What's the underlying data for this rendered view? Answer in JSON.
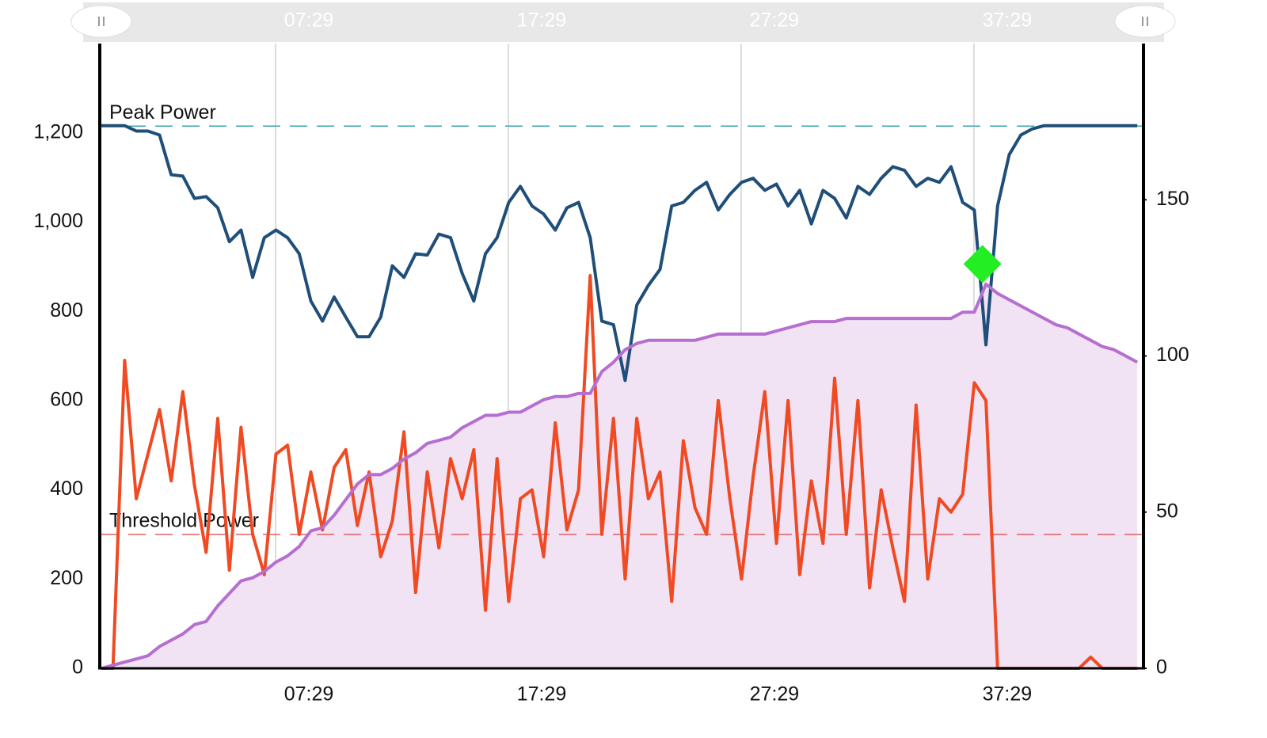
{
  "chart_data": {
    "type": "line",
    "x": [
      0,
      30,
      60,
      90,
      120,
      150,
      180,
      210,
      240,
      270,
      300,
      330,
      360,
      390,
      420,
      450,
      480,
      510,
      540,
      570,
      600,
      630,
      660,
      690,
      720,
      750,
      780,
      810,
      840,
      870,
      900,
      930,
      960,
      990,
      1020,
      1050,
      1080,
      1110,
      1140,
      1170,
      1200,
      1230,
      1260,
      1290,
      1320,
      1350,
      1380,
      1410,
      1440,
      1470,
      1500,
      1530,
      1560,
      1590,
      1620,
      1650,
      1680,
      1710,
      1740,
      1770,
      1800,
      1830,
      1860,
      1890,
      1920,
      1950,
      1980,
      2010,
      2040,
      2070,
      2100,
      2130,
      2160,
      2190,
      2220,
      2250,
      2280,
      2310,
      2340,
      2370,
      2400,
      2430,
      2460,
      2490,
      2520,
      2550,
      2580,
      2610,
      2640,
      2670
    ],
    "series": [
      {
        "color": "#f04a23",
        "axis": "y",
        "values": [
          0,
          0,
          690,
          380,
          480,
          580,
          420,
          620,
          410,
          260,
          560,
          220,
          540,
          300,
          210,
          480,
          500,
          300,
          440,
          310,
          450,
          490,
          320,
          440,
          250,
          330,
          530,
          170,
          440,
          270,
          470,
          380,
          490,
          130,
          470,
          150,
          380,
          400,
          250,
          550,
          310,
          400,
          880,
          300,
          560,
          200,
          560,
          380,
          440,
          150,
          510,
          360,
          300,
          600,
          380,
          200,
          430,
          620,
          280,
          600,
          210,
          420,
          280,
          650,
          300,
          600,
          180,
          400,
          270,
          150,
          590,
          200,
          380,
          350,
          390,
          640,
          600,
          0,
          0,
          0,
          0,
          0,
          0,
          0,
          0,
          25,
          0,
          0,
          0,
          0
        ]
      },
      {
        "color": "#1f4e79",
        "axis": "y",
        "values": [
          1216,
          1216,
          1216,
          1204,
          1204,
          1195,
          1106,
          1103,
          1053,
          1057,
          1032,
          956,
          982,
          876,
          965,
          982,
          965,
          929,
          823,
          778,
          832,
          787,
          743,
          743,
          787,
          902,
          876,
          929,
          926,
          973,
          965,
          885,
          823,
          929,
          965,
          1044,
          1080,
          1036,
          1018,
          982,
          1032,
          1044,
          965,
          778,
          770,
          645,
          814,
          858,
          894,
          1036,
          1044,
          1071,
          1089,
          1027,
          1062,
          1089,
          1098,
          1071,
          1085,
          1036,
          1071,
          996,
          1071,
          1053,
          1009,
          1080,
          1062,
          1098,
          1124,
          1116,
          1080,
          1098,
          1089,
          1124,
          1044,
          1027,
          725,
          1036,
          1151,
          1195,
          1209,
          1216,
          1216,
          1216,
          1216,
          1216,
          1216,
          1216,
          1216,
          1216
        ]
      },
      {
        "color": "#b56fd0",
        "fill": "#f1e2f4",
        "axis": "y2",
        "values": [
          0,
          1,
          2,
          3,
          4,
          7,
          9,
          11,
          14,
          15,
          20,
          24,
          28,
          29,
          31,
          34,
          36,
          39,
          44,
          45,
          49,
          54,
          59,
          62,
          62,
          64,
          67,
          69,
          72,
          73,
          74,
          77,
          79,
          81,
          81,
          82,
          82,
          84,
          86,
          87,
          87,
          88,
          88,
          95,
          98,
          102,
          104,
          105,
          105,
          105,
          105,
          105,
          106,
          107,
          107,
          107,
          107,
          107,
          108,
          109,
          110,
          111,
          111,
          111,
          112,
          112,
          112,
          112,
          112,
          112,
          112,
          112,
          112,
          112,
          114,
          114,
          123,
          120,
          118,
          116,
          114,
          112,
          110,
          109,
          107,
          105,
          103,
          102,
          100,
          98
        ]
      }
    ],
    "xlim": [
      0,
      2686
    ],
    "xticks": [
      {
        "value": 449,
        "label": "07:29"
      },
      {
        "value": 1049,
        "label": "17:29"
      },
      {
        "value": 1649,
        "label": "27:29"
      },
      {
        "value": 2249,
        "label": "37:29"
      }
    ],
    "ylim": [
      0,
      1400
    ],
    "yticks": [
      0,
      200,
      400,
      600,
      800,
      {
        "value": 1000,
        "label": "1,000"
      },
      {
        "value": 1200,
        "label": "1,200"
      }
    ],
    "y2lim": [
      0,
      200
    ],
    "y2ticks": [
      0,
      50,
      100,
      150
    ],
    "grid": true,
    "annotations": [
      {
        "label": "Peak Power",
        "value": 1215,
        "color": "#3aa6a6"
      },
      {
        "label": "Threshold Power",
        "value": 300,
        "color": "#e06060"
      }
    ],
    "marker": {
      "x": 2271,
      "y": 906,
      "color": "#22ee22"
    }
  }
}
